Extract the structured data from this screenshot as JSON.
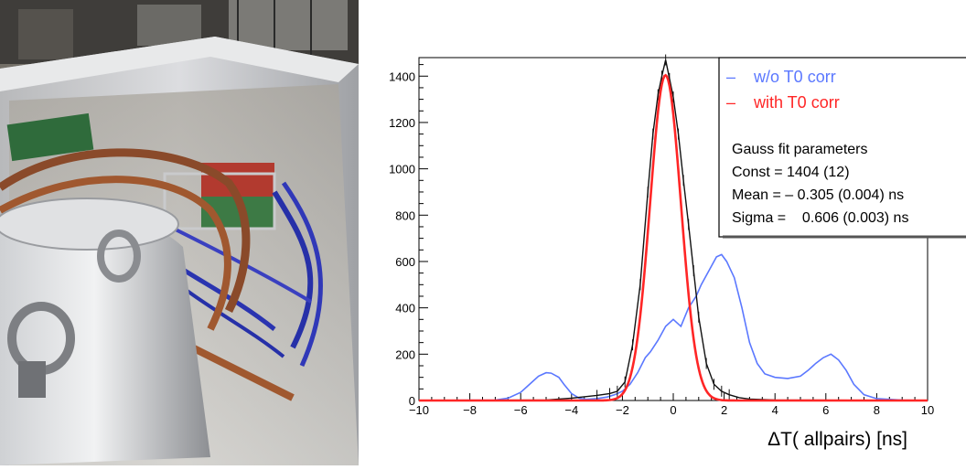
{
  "chart_data": {
    "type": "line",
    "xlabel": "ΔT( allpairs) [ns]",
    "ylabel": "",
    "xlim": [
      -10,
      10
    ],
    "ylim": [
      0,
      1480
    ],
    "xticks": [
      -10,
      -8,
      -6,
      -4,
      -2,
      0,
      2,
      4,
      6,
      8,
      10
    ],
    "yticks": [
      0,
      200,
      400,
      600,
      800,
      1000,
      1200,
      1400
    ],
    "grid": false,
    "legend_position": "top-right",
    "series": [
      {
        "name": "w/o  T0 corr",
        "color": "#5b78ff",
        "x": [
          -10,
          -7,
          -6.5,
          -6,
          -5.6,
          -5.3,
          -5.0,
          -4.8,
          -4.5,
          -4.3,
          -4.0,
          -3.7,
          -3.4,
          -3,
          -2.6,
          -2.3,
          -2.0,
          -1.7,
          -1.4,
          -1.1,
          -0.9,
          -0.6,
          -0.3,
          0,
          0.3,
          0.6,
          0.9,
          1.1,
          1.4,
          1.7,
          1.9,
          2.1,
          2.4,
          2.7,
          3.0,
          3.3,
          3.6,
          4.0,
          4.5,
          5.0,
          5.3,
          5.6,
          5.9,
          6.2,
          6.5,
          6.8,
          7.1,
          7.5,
          8,
          9,
          10
        ],
        "y": [
          0,
          2,
          10,
          35,
          75,
          105,
          120,
          118,
          100,
          70,
          30,
          10,
          5,
          8,
          15,
          25,
          40,
          70,
          120,
          185,
          210,
          260,
          320,
          350,
          320,
          400,
          450,
          500,
          560,
          620,
          630,
          600,
          530,
          400,
          250,
          160,
          115,
          100,
          95,
          105,
          130,
          160,
          185,
          200,
          175,
          130,
          70,
          25,
          8,
          2,
          0
        ]
      },
      {
        "name": "with T0 corr",
        "color": "#ff2626",
        "gauss_fit": {
          "const": 1404,
          "mean": -0.305,
          "sigma": 0.606
        }
      }
    ],
    "data_black": {
      "color": "#111111",
      "x": [
        -10,
        -5,
        -4,
        -3,
        -2.5,
        -2.2,
        -1.9,
        -1.6,
        -1.3,
        -1.0,
        -0.8,
        -0.6,
        -0.45,
        -0.3,
        -0.15,
        0,
        0.2,
        0.4,
        0.6,
        0.8,
        1.0,
        1.3,
        1.6,
        1.9,
        2.2,
        2.6,
        3,
        4,
        10
      ],
      "y": [
        0,
        2,
        10,
        22,
        30,
        40,
        80,
        240,
        500,
        900,
        1150,
        1320,
        1400,
        1470,
        1390,
        1310,
        1150,
        950,
        760,
        560,
        360,
        160,
        70,
        40,
        25,
        12,
        6,
        2,
        0
      ]
    },
    "annotation": {
      "title": "Gauss fit parameters",
      "lines": [
        "Const = 1404 (12)",
        "Mean = – 0.305 (0.004) ns",
        "Sigma =    0.606 (0.003) ns"
      ]
    },
    "legend_marker": "–"
  }
}
